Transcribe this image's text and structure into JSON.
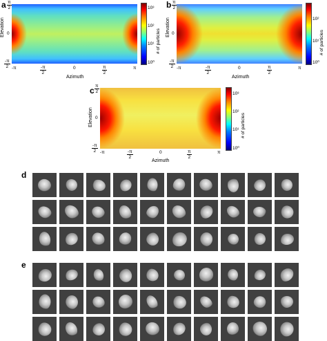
{
  "panels": {
    "a": {
      "letter": "a",
      "xlabel": "Azimuth",
      "ylabel": "Elevation",
      "cbar_label": "# of particles",
      "cbar_ticks": [
        "10³",
        "10²",
        "10¹",
        "10⁰"
      ]
    },
    "b": {
      "letter": "b",
      "xlabel": "Azimuth",
      "ylabel": "Elevation",
      "cbar_label": "# of particles",
      "cbar_ticks": [
        "10²",
        "10¹",
        "10⁰"
      ]
    },
    "c": {
      "letter": "c",
      "xlabel": "Azimuth",
      "ylabel": "Elevation",
      "cbar_label": "# of particles",
      "cbar_ticks": [
        "10³",
        "10²",
        "10¹",
        "10⁰"
      ]
    }
  },
  "ticks": {
    "pi": "π",
    "neg_pi": "-π",
    "zero": "0",
    "two": "2",
    "neg_pi_num": "-π",
    "pi_num": "π"
  },
  "galleries": {
    "d": {
      "letter": "d",
      "rows": 3,
      "cols": 10
    },
    "e": {
      "letter": "e",
      "rows": 3,
      "cols": 10
    }
  }
}
